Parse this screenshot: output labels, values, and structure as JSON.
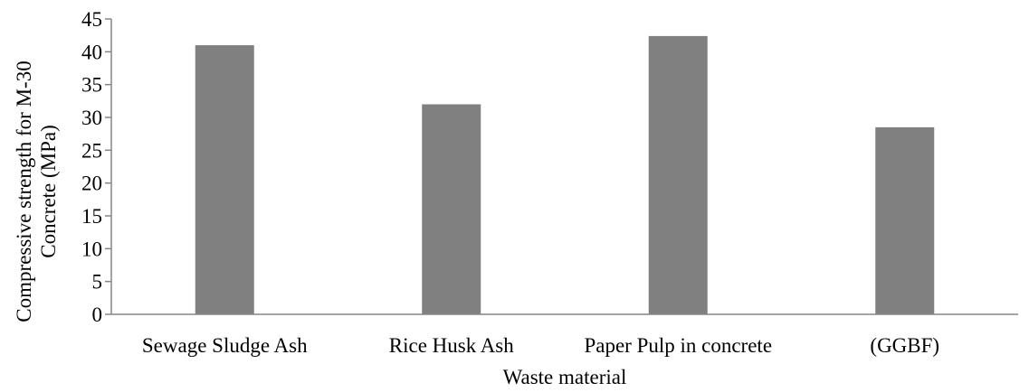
{
  "chart_data": {
    "type": "bar",
    "title": "",
    "categories": [
      "Sewage Sludge Ash",
      "Rice Husk Ash",
      "Paper Pulp in concrete",
      "(GGBF)"
    ],
    "values": [
      41,
      32,
      42.4,
      28.5
    ],
    "xlabel": "Waste material",
    "ylabel_lines": [
      "Compressive strength for M-30",
      "Concrete  (MPa)"
    ],
    "ylim": [
      0,
      45
    ],
    "yticks": [
      0,
      5,
      10,
      15,
      20,
      25,
      30,
      35,
      40,
      45
    ],
    "grid": false,
    "legend": "none",
    "bar_color": "#808080"
  }
}
